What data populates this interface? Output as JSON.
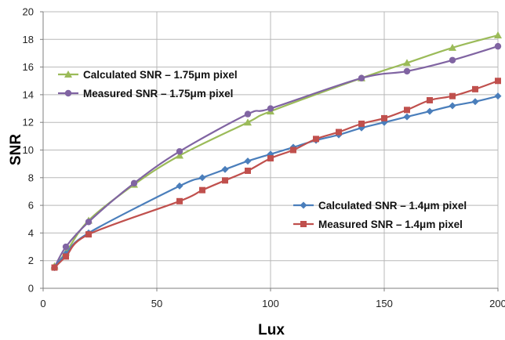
{
  "chart_data": {
    "type": "line",
    "title": "",
    "xlabel": "Lux",
    "ylabel": "SNR",
    "xlim": [
      0,
      200
    ],
    "ylim": [
      0,
      20
    ],
    "xticks": [
      0,
      50,
      100,
      150,
      200
    ],
    "yticks": [
      0,
      2,
      4,
      6,
      8,
      10,
      12,
      14,
      16,
      18,
      20
    ],
    "grid": true,
    "series": [
      {
        "name": "Calculated SNR – 1.75μm pixel",
        "color": "#9bbb59",
        "marker": "triangle",
        "legend_group": "top-left",
        "x": [
          5,
          10,
          20,
          40,
          60,
          90,
          100,
          140,
          160,
          180,
          200
        ],
        "y": [
          1.6,
          2.6,
          4.9,
          7.5,
          9.6,
          12.0,
          12.8,
          15.2,
          16.3,
          17.4,
          18.3
        ]
      },
      {
        "name": "Measured SNR – 1.75μm pixel",
        "color": "#8064a2",
        "marker": "circle",
        "legend_group": "top-left",
        "x": [
          5,
          10,
          20,
          40,
          60,
          90,
          100,
          140,
          160,
          180,
          200
        ],
        "y": [
          1.5,
          3.0,
          4.8,
          7.6,
          9.9,
          12.6,
          13.0,
          15.2,
          15.7,
          16.5,
          17.5
        ]
      },
      {
        "name": "Calculated SNR – 1.4μm pixel",
        "color": "#4a7ebb",
        "marker": "diamond",
        "legend_group": "bottom-right",
        "x": [
          5,
          10,
          20,
          60,
          70,
          80,
          90,
          100,
          110,
          120,
          130,
          140,
          150,
          160,
          170,
          180,
          190,
          200
        ],
        "y": [
          1.5,
          2.5,
          4.0,
          7.4,
          8.0,
          8.6,
          9.2,
          9.7,
          10.2,
          10.7,
          11.1,
          11.6,
          12.0,
          12.4,
          12.8,
          13.2,
          13.5,
          13.9
        ]
      },
      {
        "name": "Measured SNR – 1.4μm pixel",
        "color": "#c0504d",
        "marker": "square",
        "legend_group": "bottom-right",
        "x": [
          5,
          10,
          20,
          60,
          70,
          80,
          90,
          100,
          110,
          120,
          130,
          140,
          150,
          160,
          170,
          180,
          190,
          200
        ],
        "y": [
          1.5,
          2.3,
          3.9,
          6.3,
          7.1,
          7.8,
          8.5,
          9.4,
          10.0,
          10.8,
          11.3,
          11.9,
          12.3,
          12.9,
          13.6,
          13.9,
          14.4,
          15.0
        ]
      }
    ]
  }
}
